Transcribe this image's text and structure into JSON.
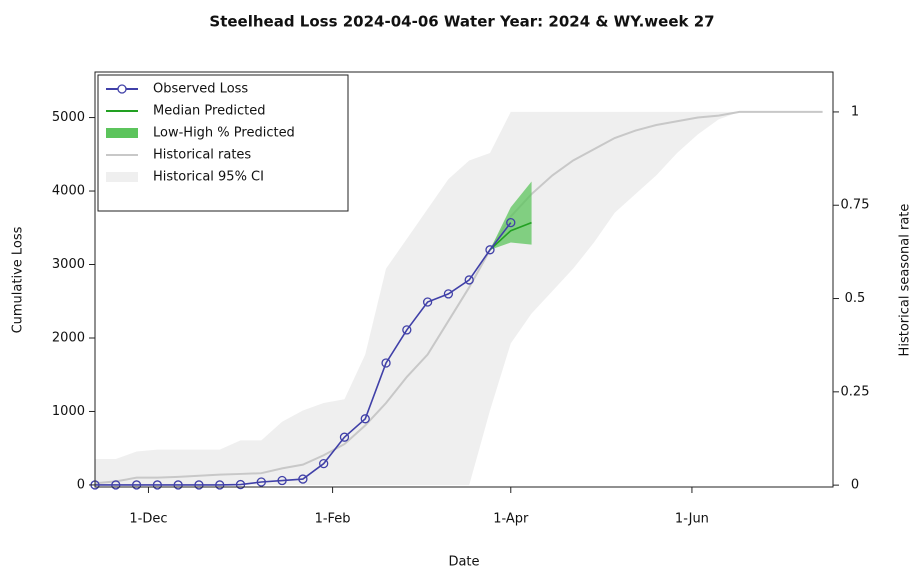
{
  "chart_data": {
    "type": "line",
    "title": "Steelhead Loss 2024-04-06  Water Year: 2024 & WY.week 27",
    "xlabel": "Date",
    "ylabel": "Cumulative Loss",
    "y2label": "Historical seasonal rate",
    "xlim": [
      43,
      291.5
    ],
    "xticks": [
      {
        "value": 61,
        "label": "1-Dec"
      },
      {
        "value": 123,
        "label": "1-Feb"
      },
      {
        "value": 183,
        "label": "1-Apr"
      },
      {
        "value": 244,
        "label": "1-Jun"
      }
    ],
    "ylim": [
      -28,
      5620
    ],
    "yticks": [
      0,
      1000,
      2000,
      3000,
      4000,
      5000
    ],
    "y2lim": [
      -0.005,
      1.107
    ],
    "y2ticks": [
      0,
      0.25,
      0.5,
      0.75,
      1
    ],
    "legend": "topleft",
    "series": [
      {
        "name": "Observed Loss",
        "color": "#4040a8",
        "kind": "line-marker",
        "x": [
          43,
          50,
          57,
          64,
          71,
          78,
          85,
          92,
          99,
          106,
          113,
          120,
          127,
          134,
          141,
          148,
          155,
          162,
          169,
          176,
          183
        ],
        "values": [
          0,
          0,
          0,
          0,
          0,
          0,
          0,
          5,
          40,
          60,
          80,
          290,
          650,
          900,
          1660,
          2110,
          2490,
          2600,
          2790,
          3200,
          3570
        ]
      },
      {
        "name": "Median Predicted",
        "color": "#22a022",
        "kind": "line",
        "x": [
          176,
          183,
          190
        ],
        "values": [
          3200,
          3460,
          3570
        ]
      },
      {
        "name": "Low-High % Predicted",
        "color": "#5cc45c",
        "kind": "band",
        "x": [
          176,
          183,
          190
        ],
        "low": [
          3200,
          3300,
          3270
        ],
        "high": [
          3200,
          3780,
          4130
        ]
      },
      {
        "name": "Historical rates",
        "color": "#c8c8c8",
        "kind": "line",
        "axis": "y2",
        "x": [
          43,
          50,
          57,
          64,
          71,
          78,
          85,
          92,
          99,
          106,
          113,
          120,
          127,
          134,
          141,
          148,
          155,
          162,
          169,
          176,
          183,
          190,
          197,
          204,
          211,
          218,
          225,
          232,
          239,
          246,
          253,
          260,
          267,
          274,
          281,
          288
        ],
        "values": [
          0.005,
          0.01,
          0.02,
          0.02,
          0.022,
          0.025,
          0.028,
          0.03,
          0.032,
          0.045,
          0.055,
          0.08,
          0.11,
          0.16,
          0.22,
          0.29,
          0.35,
          0.44,
          0.53,
          0.63,
          0.72,
          0.78,
          0.83,
          0.87,
          0.9,
          0.93,
          0.95,
          0.965,
          0.975,
          0.985,
          0.99,
          1,
          1,
          1,
          1,
          1
        ]
      },
      {
        "name": "Historical 95% CI",
        "color": "#efefef",
        "kind": "band",
        "axis": "y2",
        "x": [
          43,
          50,
          57,
          64,
          71,
          78,
          85,
          92,
          99,
          106,
          113,
          120,
          127,
          134,
          141,
          148,
          155,
          162,
          169,
          176,
          183,
          190,
          197,
          204,
          211,
          218,
          225,
          232,
          239,
          246,
          253,
          260,
          267,
          274,
          281,
          288
        ],
        "low": [
          0,
          0,
          0,
          0,
          0,
          0,
          0,
          0,
          0,
          0,
          0,
          0,
          0,
          0,
          0,
          0,
          0,
          0,
          0,
          0.2,
          0.38,
          0.46,
          0.52,
          0.58,
          0.65,
          0.73,
          0.78,
          0.83,
          0.89,
          0.94,
          0.98,
          1,
          1,
          1,
          1,
          1
        ],
        "high": [
          0.07,
          0.07,
          0.09,
          0.095,
          0.095,
          0.095,
          0.095,
          0.12,
          0.12,
          0.17,
          0.2,
          0.22,
          0.23,
          0.35,
          0.58,
          0.66,
          0.74,
          0.82,
          0.87,
          0.89,
          1,
          1,
          1,
          1,
          1,
          1,
          1,
          1,
          1,
          1,
          1,
          1,
          1,
          1,
          1,
          1
        ]
      }
    ]
  }
}
